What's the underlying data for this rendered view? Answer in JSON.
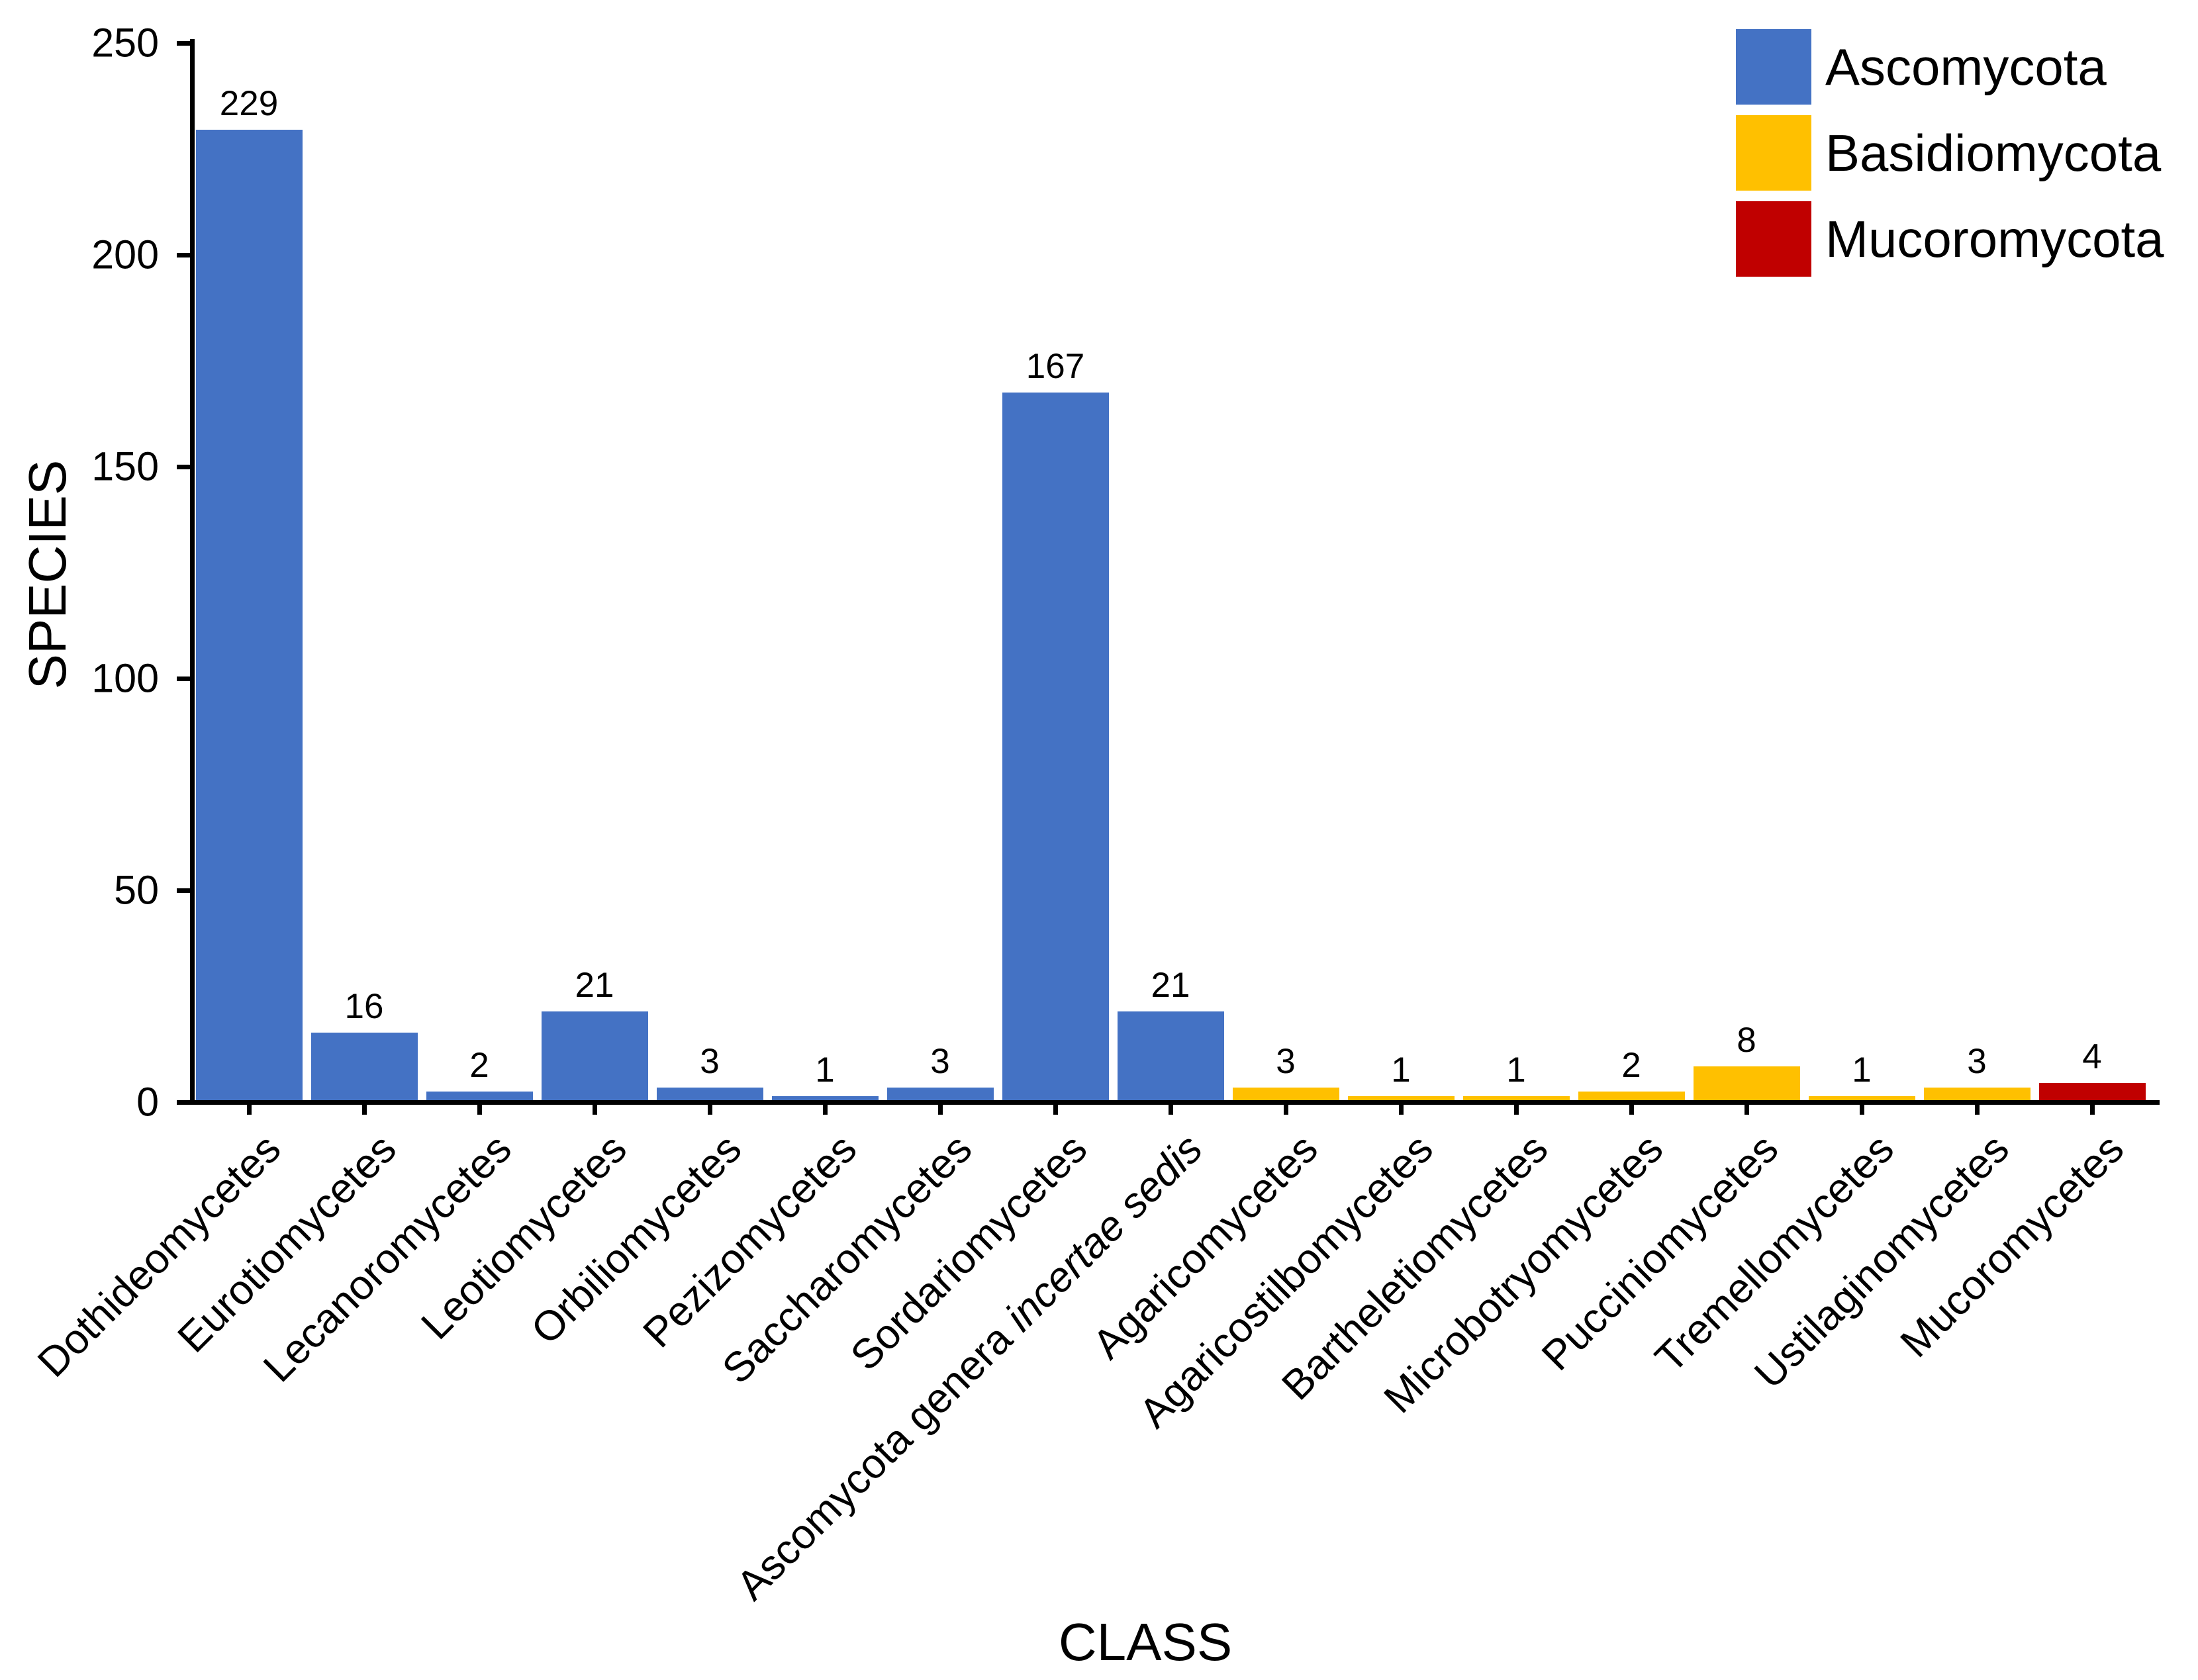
{
  "chart_data": {
    "type": "bar",
    "title": "",
    "xlabel": "CLASS",
    "ylabel": "SPECIES",
    "ylim": [
      0,
      250
    ],
    "yticks": [
      0,
      50,
      100,
      150,
      200,
      250
    ],
    "grid": false,
    "legend_position": "top-right",
    "background_color": "#ffffff",
    "axis_color": "#000000",
    "legend": [
      {
        "label": "Ascomycota",
        "color": "#4472C4"
      },
      {
        "label": "Basidiomycota",
        "color": "#FFC000"
      },
      {
        "label": "Mucoromycota",
        "color": "#C00000"
      }
    ],
    "categories": [
      "Dothideomycetes",
      "Eurotiomycetes",
      "Lecanoromycetes",
      "Leotiomycetes",
      "Orbiliomycetes",
      "Pezizomycetes",
      "Saccharomycetes",
      "Sordariomycetes",
      "Ascomycota genera incertae sedis",
      "Agaricomycetes",
      "Agaricostilbomycetes",
      "Bartheletiomycetes",
      "Microbotryomycetes",
      "Pucciniomycetes",
      "Tremellomycetes",
      "Ustilaginomycetes",
      "Mucoromycetes"
    ],
    "category_italic_part": {
      "index": 8,
      "text": "incertae sedis"
    },
    "values": [
      229,
      16,
      2,
      21,
      3,
      1,
      3,
      167,
      21,
      3,
      1,
      1,
      2,
      8,
      1,
      3,
      4
    ],
    "bar_phylum": [
      "Ascomycota",
      "Ascomycota",
      "Ascomycota",
      "Ascomycota",
      "Ascomycota",
      "Ascomycota",
      "Ascomycota",
      "Ascomycota",
      "Ascomycota",
      "Basidiomycota",
      "Basidiomycota",
      "Basidiomycota",
      "Basidiomycota",
      "Basidiomycota",
      "Basidiomycota",
      "Basidiomycota",
      "Mucoromycota"
    ]
  }
}
